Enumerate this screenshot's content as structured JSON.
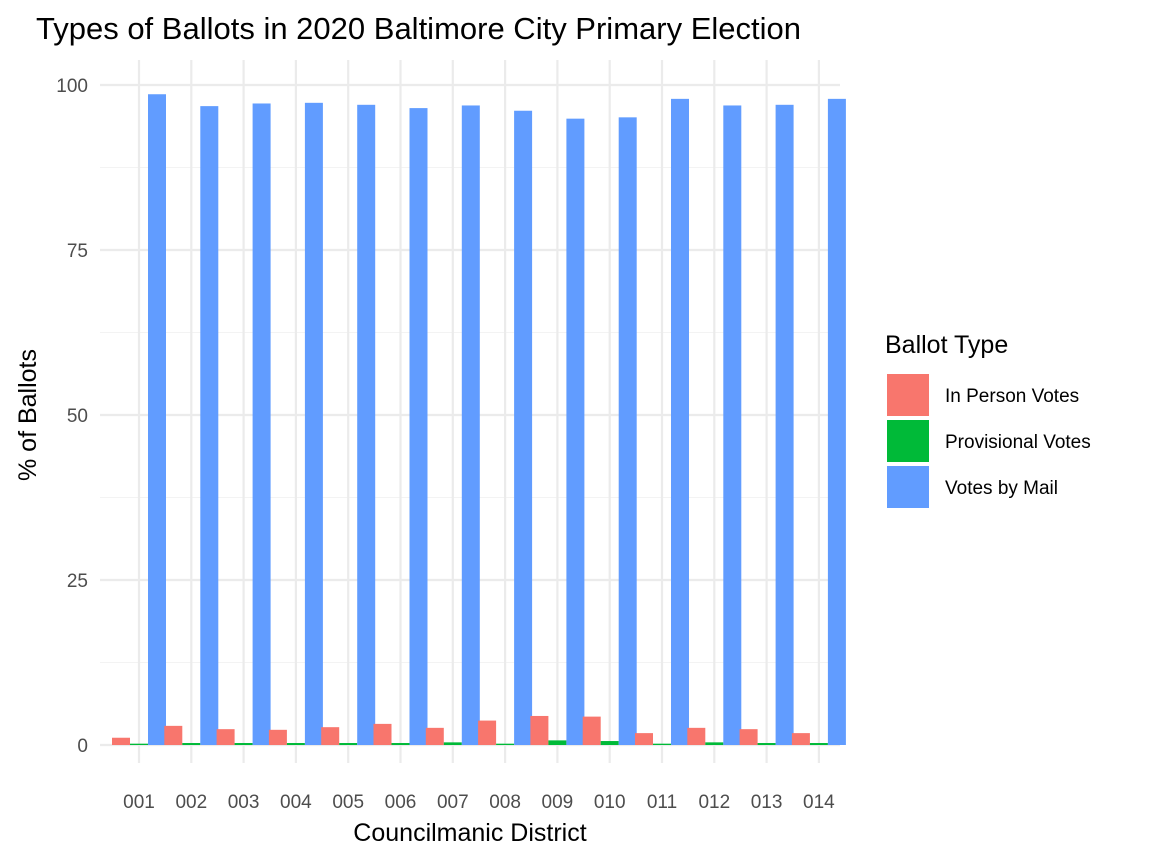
{
  "chart_data": {
    "type": "bar",
    "title": "Types of Ballots in 2020 Baltimore City Primary Election",
    "xlabel": "Councilmanic District",
    "ylabel": "% of Ballots",
    "ylim": [
      0,
      100
    ],
    "yticks": [
      0,
      25,
      50,
      75,
      100
    ],
    "grid": true,
    "legend": {
      "title": "Ballot Type",
      "position": "right"
    },
    "categories": [
      "001",
      "002",
      "003",
      "004",
      "005",
      "006",
      "007",
      "008",
      "009",
      "010",
      "011",
      "012",
      "013",
      "014"
    ],
    "series": [
      {
        "name": "In Person Votes",
        "color": "#F8766D",
        "values": [
          1.1,
          2.9,
          2.4,
          2.3,
          2.7,
          3.2,
          2.6,
          3.7,
          4.4,
          4.3,
          1.8,
          2.6,
          2.4,
          1.8
        ]
      },
      {
        "name": "Provisional Votes",
        "color": "#00BA38",
        "values": [
          0.2,
          0.3,
          0.3,
          0.3,
          0.3,
          0.3,
          0.4,
          0.2,
          0.7,
          0.6,
          0.2,
          0.4,
          0.3,
          0.3
        ]
      },
      {
        "name": "Votes by Mail",
        "color": "#619CFF",
        "values": [
          98.6,
          96.8,
          97.2,
          97.3,
          97.0,
          96.5,
          96.9,
          96.1,
          94.9,
          95.1,
          97.9,
          96.9,
          97.0,
          97.9
        ]
      }
    ]
  }
}
